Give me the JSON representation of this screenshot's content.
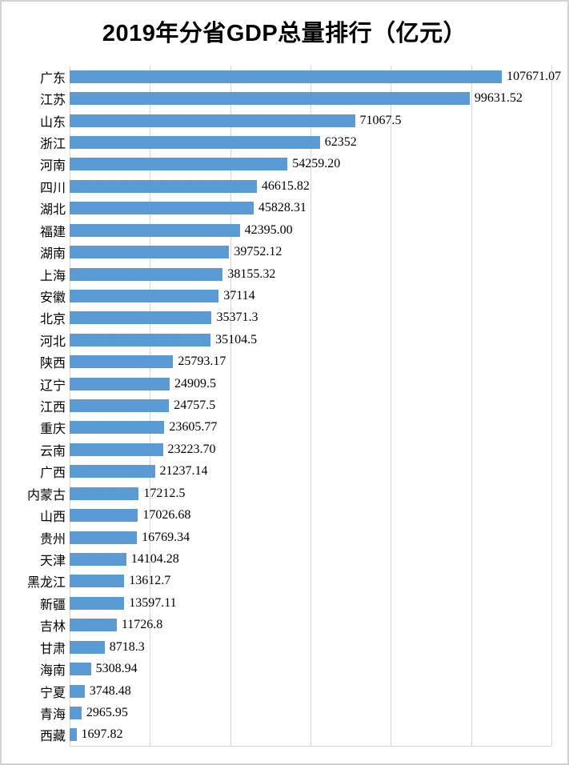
{
  "chart_data": {
    "type": "bar",
    "orientation": "horizontal",
    "title": "2019年分省GDP总量排行（亿元）",
    "categories": [
      "广东",
      "江苏",
      "山东",
      "浙江",
      "河南",
      "四川",
      "湖北",
      "福建",
      "湖南",
      "上海",
      "安徽",
      "北京",
      "河北",
      "陕西",
      "辽宁",
      "江西",
      "重庆",
      "云南",
      "广西",
      "内蒙古",
      "山西",
      "贵州",
      "天津",
      "黑龙江",
      "新疆",
      "吉林",
      "甘肃",
      "海南",
      "宁夏",
      "青海",
      "西藏"
    ],
    "values": [
      107671.07,
      99631.52,
      71067.5,
      62352,
      54259.2,
      46615.82,
      45828.31,
      42395.0,
      39752.12,
      38155.32,
      37114,
      35371.3,
      35104.5,
      25793.17,
      24909.5,
      24757.5,
      23605.77,
      23223.7,
      21237.14,
      17212.5,
      17026.68,
      16769.34,
      14104.28,
      13612.7,
      13597.11,
      11726.8,
      8718.3,
      5308.94,
      3748.48,
      2965.95,
      1697.82
    ],
    "value_labels": [
      "107671.07",
      "99631.52",
      "71067.5",
      "62352",
      "54259.20",
      "46615.82",
      "45828.31",
      "42395.00",
      "39752.12",
      "38155.32",
      "37114",
      "35371.3",
      "35104.5",
      "25793.17",
      "24909.5",
      "24757.5",
      "23605.77",
      "23223.70",
      "21237.14",
      "17212.5",
      "17026.68",
      "16769.34",
      "14104.28",
      "13612.7",
      "13597.11",
      "11726.8",
      "8718.3",
      "5308.94",
      "3748.48",
      "2965.95",
      "1697.82"
    ],
    "xlabel": "",
    "ylabel": "",
    "xlim": [
      0,
      120000
    ],
    "gridline_interval": 20000,
    "grid": "vertical-only",
    "legend": "none",
    "axis_tick_labels_visible": false,
    "bar_color": "#5b9bd5",
    "gridline_color": "#d6d6d6",
    "text_color": "#000000",
    "background_color": "#ffffff",
    "border_color": "#d2d2d2"
  }
}
